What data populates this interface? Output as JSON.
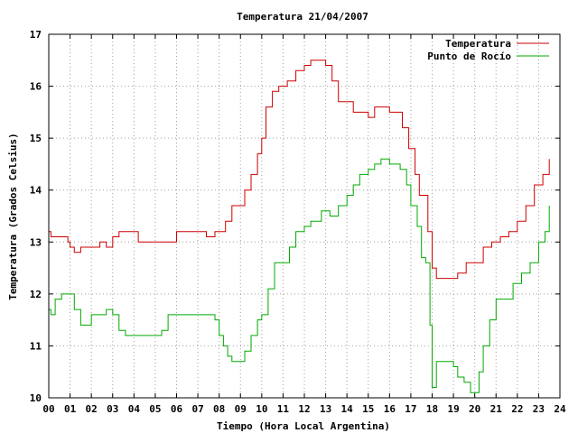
{
  "chart_data": {
    "type": "line",
    "title": "Temperatura 21/04/2007",
    "xlabel": "Tiempo (Hora Local Argentina)",
    "ylabel": "Temperatura (Grados Celsius)",
    "xlim": [
      0,
      24
    ],
    "ylim": [
      10,
      17
    ],
    "x_tick_labels": [
      "00",
      "01",
      "02",
      "03",
      "04",
      "05",
      "06",
      "07",
      "08",
      "09",
      "10",
      "11",
      "12",
      "13",
      "14",
      "15",
      "16",
      "17",
      "18",
      "19",
      "20",
      "21",
      "22",
      "23",
      "24"
    ],
    "y_tick_labels": [
      "10",
      "11",
      "12",
      "13",
      "14",
      "15",
      "16",
      "17"
    ],
    "grid": true,
    "legend_position": "top-right",
    "series": [
      {
        "name": "Temperatura",
        "color": "#cc0000",
        "x": [
          0,
          0.1,
          0.3,
          0.6,
          0.9,
          1.0,
          1.2,
          1.5,
          2.0,
          2.4,
          2.7,
          3.0,
          3.3,
          3.6,
          3.9,
          4.2,
          5.0,
          5.4,
          6.0,
          6.9,
          7.4,
          7.8,
          8.1,
          8.3,
          8.6,
          8.9,
          9.2,
          9.5,
          9.8,
          10.0,
          10.2,
          10.5,
          10.8,
          11.2,
          11.6,
          12.0,
          12.3,
          12.8,
          13.0,
          13.3,
          13.6,
          14.0,
          14.3,
          14.6,
          15.0,
          15.3,
          15.6,
          16.0,
          16.3,
          16.6,
          16.9,
          17.2,
          17.4,
          17.6,
          17.8,
          18.0,
          18.2,
          18.4,
          18.8,
          19.2,
          19.6,
          20.0,
          20.4,
          20.8,
          21.2,
          21.6,
          22.0,
          22.4,
          22.8,
          23.2,
          23.5
        ],
        "values": [
          13.2,
          13.1,
          13.1,
          13.1,
          13.0,
          12.9,
          12.8,
          12.9,
          12.9,
          13.0,
          12.9,
          13.1,
          13.2,
          13.2,
          13.2,
          13.0,
          13.0,
          13.0,
          13.2,
          13.2,
          13.1,
          13.2,
          13.2,
          13.4,
          13.7,
          13.7,
          14.0,
          14.3,
          14.7,
          15.0,
          15.6,
          15.9,
          16.0,
          16.1,
          16.3,
          16.4,
          16.5,
          16.5,
          16.4,
          16.1,
          15.7,
          15.7,
          15.5,
          15.5,
          15.4,
          15.6,
          15.6,
          15.5,
          15.5,
          15.2,
          14.8,
          14.3,
          13.9,
          13.9,
          13.2,
          12.5,
          12.3,
          12.3,
          12.3,
          12.4,
          12.6,
          12.6,
          12.9,
          13.0,
          13.1,
          13.2,
          13.4,
          13.7,
          14.1,
          14.3,
          14.6
        ]
      },
      {
        "name": "Punto de Rocío",
        "color": "#00aa00",
        "x": [
          0,
          0.1,
          0.3,
          0.6,
          1.0,
          1.2,
          1.5,
          2.0,
          2.4,
          2.7,
          3.0,
          3.3,
          3.6,
          4.0,
          5.0,
          5.3,
          5.6,
          6.0,
          6.8,
          7.3,
          7.8,
          8.0,
          8.2,
          8.4,
          8.6,
          8.9,
          9.2,
          9.5,
          9.8,
          10.0,
          10.3,
          10.6,
          11.0,
          11.3,
          11.6,
          12.0,
          12.3,
          12.8,
          13.2,
          13.6,
          14.0,
          14.3,
          14.6,
          15.0,
          15.3,
          15.6,
          16.0,
          16.2,
          16.5,
          16.8,
          17.0,
          17.3,
          17.5,
          17.7,
          17.9,
          18.0,
          18.2,
          18.4,
          18.8,
          19.0,
          19.2,
          19.5,
          19.8,
          20.0,
          20.2,
          20.4,
          20.7,
          21.0,
          21.4,
          21.8,
          22.2,
          22.6,
          23.0,
          23.3,
          23.5
        ],
        "values": [
          11.7,
          11.6,
          11.9,
          12.0,
          12.0,
          11.7,
          11.4,
          11.6,
          11.6,
          11.7,
          11.6,
          11.3,
          11.2,
          11.2,
          11.2,
          11.3,
          11.6,
          11.6,
          11.6,
          11.6,
          11.5,
          11.2,
          11.0,
          10.8,
          10.7,
          10.7,
          10.9,
          11.2,
          11.5,
          11.6,
          12.1,
          12.6,
          12.6,
          12.9,
          13.2,
          13.3,
          13.4,
          13.6,
          13.5,
          13.7,
          13.9,
          14.1,
          14.3,
          14.4,
          14.5,
          14.6,
          14.5,
          14.5,
          14.4,
          14.1,
          13.7,
          13.3,
          12.7,
          12.6,
          11.4,
          10.2,
          10.7,
          10.7,
          10.7,
          10.6,
          10.4,
          10.3,
          10.1,
          10.1,
          10.5,
          11.0,
          11.5,
          11.9,
          11.9,
          12.2,
          12.4,
          12.6,
          13.0,
          13.2,
          13.7
        ]
      }
    ]
  }
}
